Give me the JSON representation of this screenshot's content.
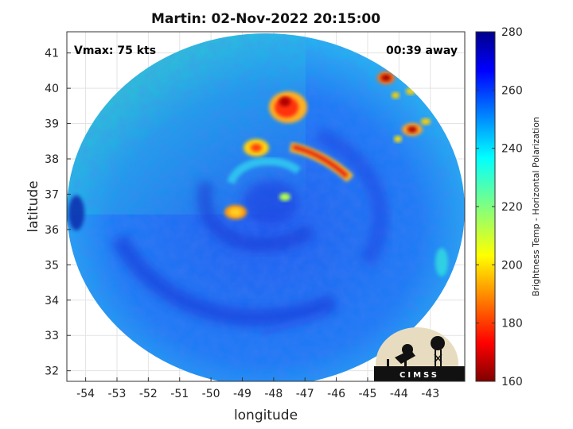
{
  "chart_data": {
    "type": "heatmap",
    "title": "Martin: 02-Nov-2022 20:15:00",
    "xlabel": "longitude",
    "ylabel": "latitude",
    "xlim": [
      -54.6,
      -41.9
    ],
    "ylim": [
      31.7,
      41.6
    ],
    "xticks": [
      -54,
      -53,
      -52,
      -51,
      -50,
      -49,
      -48,
      -47,
      -46,
      -45,
      -44,
      -43
    ],
    "yticks": [
      32,
      33,
      34,
      35,
      36,
      37,
      38,
      39,
      40,
      41
    ],
    "grid": true,
    "annotations": {
      "vmax": "Vmax: 75 kts",
      "time_away": "00:39 away"
    },
    "colorbar": {
      "label": "Brightness Temp - Horizontal Polarization",
      "min": 160,
      "max": 280,
      "ticks": [
        160,
        180,
        200,
        220,
        240,
        260,
        280
      ],
      "colormap": "jet"
    },
    "features": [
      {
        "lon": -48.0,
        "lat": 36.7,
        "value": 250,
        "kind": "eye"
      },
      {
        "lon": -49.8,
        "lat": 36.35,
        "value": 192,
        "kind": "eyewall"
      },
      {
        "lon": -48.3,
        "lat": 37.35,
        "value": 235,
        "kind": "eyewall"
      },
      {
        "lon": -47.8,
        "lat": 39.6,
        "value": 170,
        "kind": "convection"
      },
      {
        "lon": -48.6,
        "lat": 38.1,
        "value": 188,
        "kind": "convection"
      },
      {
        "lon": -46.6,
        "lat": 37.9,
        "value": 180,
        "kind": "rainband"
      },
      {
        "lon": -44.5,
        "lat": 40.35,
        "value": 168,
        "kind": "convection"
      },
      {
        "lon": -44.0,
        "lat": 38.85,
        "value": 170,
        "kind": "convection"
      },
      {
        "lon": -51.5,
        "lat": 39.5,
        "value": 238,
        "kind": "clear_sky"
      },
      {
        "lon": -53.8,
        "lat": 38.0,
        "value": 235,
        "kind": "clear_sky"
      }
    ]
  },
  "logo": {
    "text": "CIMSS"
  }
}
